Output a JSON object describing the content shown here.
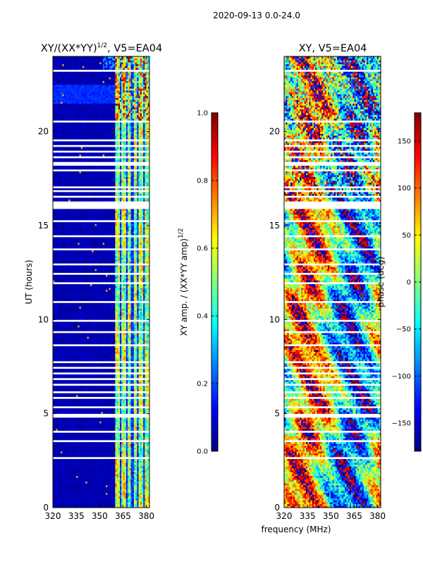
{
  "suptitle": "2020-09-13 0.0-24.0",
  "xlabel_shared": "frequency (MHz)",
  "colormap": [
    "#00007f",
    "#0000ff",
    "#007fff",
    "#00ffff",
    "#7fff7f",
    "#ffff00",
    "#ff7f00",
    "#ff0000",
    "#7f0000"
  ],
  "chart_data": [
    {
      "type": "heatmap",
      "title_main": "XY/(XX*YY)",
      "title_exp": "1/2",
      "title_rest": ", V5=EA04",
      "ylabel": "UT (hours)",
      "xlim": [
        320,
        382
      ],
      "ylim": [
        0,
        24
      ],
      "xticks": [
        320,
        335,
        350,
        365,
        380
      ],
      "yticks": [
        0,
        5,
        10,
        15,
        20
      ],
      "colorbar": {
        "label_main": "XY amp. / (XX*YY amp)",
        "label_exp": "1/2",
        "range": [
          0.0,
          1.0
        ],
        "ticks": [
          "0.0",
          "0.2",
          "0.4",
          "0.6",
          "0.8",
          "1.0"
        ],
        "tick_values": [
          0.0,
          0.2,
          0.4,
          0.6,
          0.8,
          1.0
        ]
      }
    },
    {
      "type": "heatmap",
      "title": "XY, V5=EA04",
      "xlim": [
        320,
        382
      ],
      "ylim": [
        0,
        24
      ],
      "xticks": [
        320,
        335,
        350,
        365,
        380
      ],
      "yticks": [
        0,
        5,
        10,
        15,
        20
      ],
      "colorbar": {
        "label": "phase (deg)",
        "range": [
          -180,
          180
        ],
        "ticks": [
          "−150",
          "−100",
          "−50",
          "0",
          "50",
          "100",
          "150"
        ],
        "tick_values": [
          -150,
          -100,
          -50,
          0,
          50,
          100,
          150
        ]
      }
    }
  ],
  "flagged_gaps_ut": [
    [
      2.6,
      2.75
    ],
    [
      2.95,
      3.0
    ],
    [
      3.55,
      3.6
    ],
    [
      4.05,
      4.1
    ],
    [
      4.85,
      4.95
    ],
    [
      5.35,
      5.4
    ],
    [
      5.6,
      5.65
    ],
    [
      5.85,
      5.9
    ],
    [
      6.1,
      6.15
    ],
    [
      6.45,
      6.55
    ],
    [
      6.85,
      6.9
    ],
    [
      7.15,
      7.2
    ],
    [
      7.45,
      7.5
    ],
    [
      7.75,
      7.8
    ],
    [
      8.05,
      8.1
    ],
    [
      8.3,
      8.35
    ],
    [
      8.65,
      8.7
    ],
    [
      9.35,
      9.4
    ],
    [
      9.6,
      9.65
    ],
    [
      9.95,
      10.0
    ],
    [
      10.95,
      11.0
    ],
    [
      11.5,
      11.55
    ],
    [
      11.95,
      12.0
    ],
    [
      12.45,
      12.5
    ],
    [
      12.95,
      13.0
    ],
    [
      13.75,
      13.8
    ],
    [
      14.45,
      14.5
    ],
    [
      15.25,
      15.3
    ],
    [
      15.95,
      16.3
    ],
    [
      16.55,
      16.6
    ],
    [
      16.8,
      16.85
    ],
    [
      17.05,
      17.1
    ],
    [
      17.3,
      17.35
    ],
    [
      17.6,
      17.65
    ],
    [
      17.95,
      18.0
    ],
    [
      18.2,
      18.45
    ],
    [
      18.65,
      18.7
    ],
    [
      18.95,
      19.0
    ],
    [
      19.25,
      19.3
    ],
    [
      19.55,
      19.6
    ],
    [
      19.85,
      19.9
    ],
    [
      20.2,
      20.25
    ],
    [
      20.5,
      20.55
    ],
    [
      23.0,
      23.05
    ],
    [
      23.2,
      23.3
    ]
  ]
}
